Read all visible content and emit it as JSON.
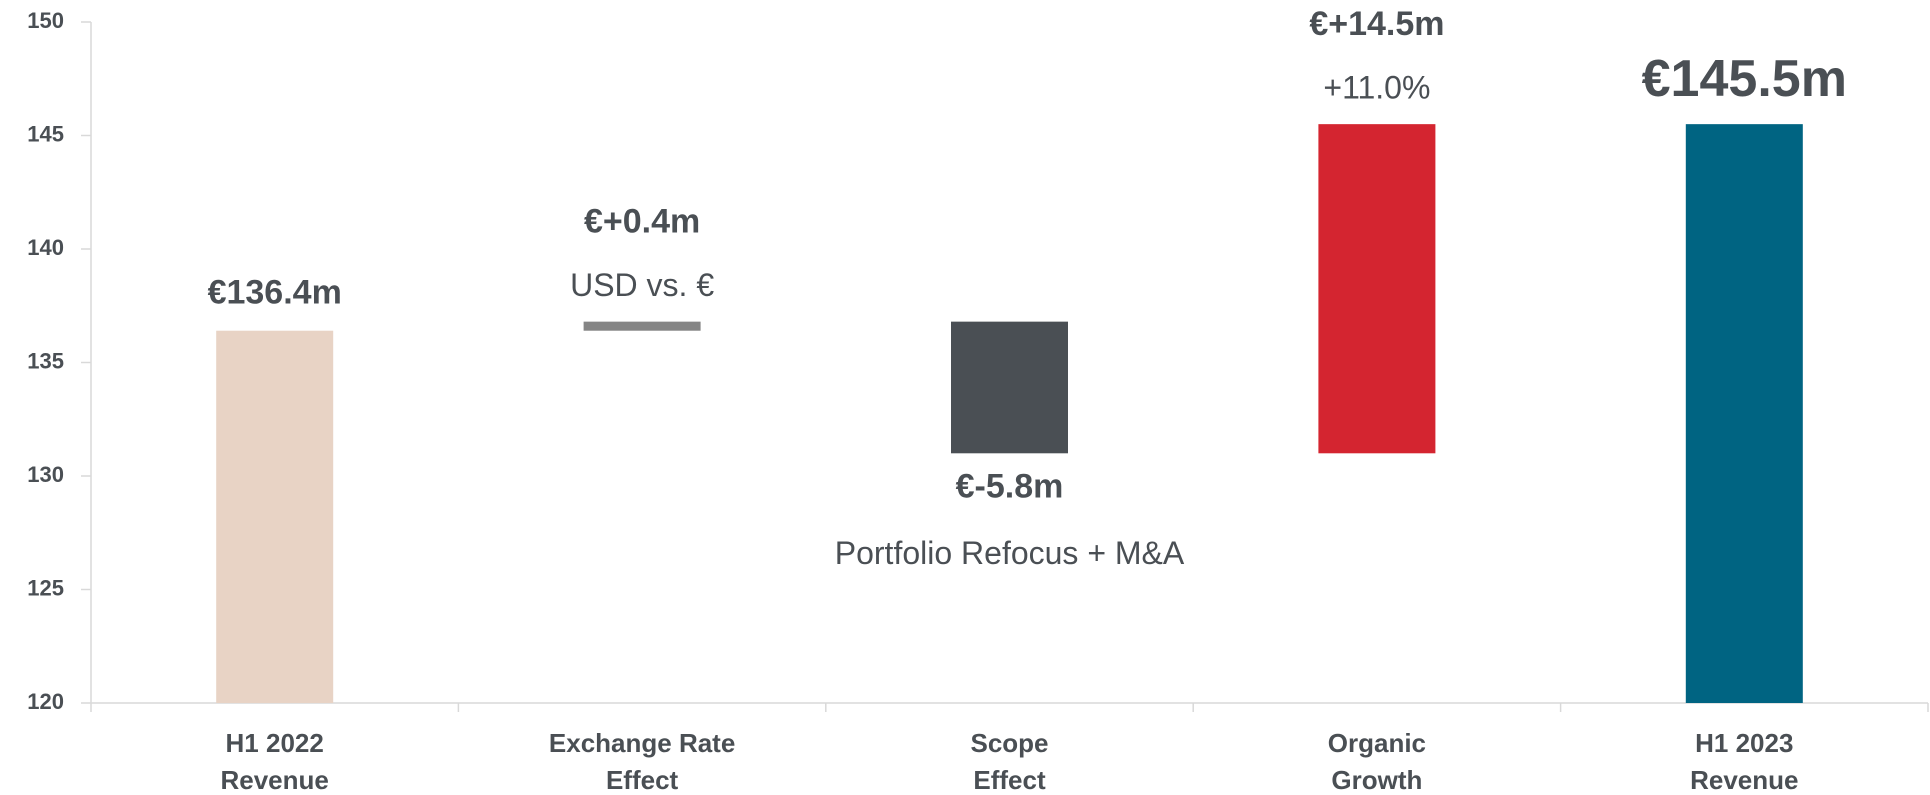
{
  "chart_data": {
    "type": "waterfall",
    "categories": [
      "H1 2022\nRevenue",
      "Exchange Rate\nEffect",
      "Scope\nEffect",
      "Organic\nGrowth",
      "H1 2023\nRevenue"
    ],
    "values": [
      136.4,
      0.4,
      -5.8,
      14.5,
      145.5
    ],
    "value_labels": [
      "€136.4m",
      "€+0.4m",
      "€-5.8m",
      "€+14.5m",
      "€145.5m"
    ],
    "measures": [
      "absolute",
      "relative",
      "relative",
      "relative",
      "total"
    ],
    "annotations": [
      null,
      "USD vs. €",
      "Portfolio Refocus + M&A",
      "+11.0%",
      null
    ],
    "colors": [
      "#e8d3c5",
      "#858585",
      "#4a4f54",
      "#d42530",
      "#006482"
    ],
    "ylim": [
      120,
      150
    ],
    "yticks": [
      120,
      125,
      130,
      135,
      140,
      145,
      150
    ]
  }
}
